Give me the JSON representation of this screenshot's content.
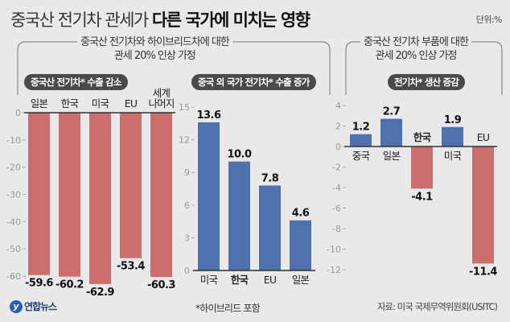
{
  "header": {
    "title_light": "중국산 전기차 관세가",
    "title_bold": "다른 국가에 미치는 영향",
    "unit": "단위:%"
  },
  "groups": [
    {
      "caption_line1": "중국산 전기차와 하이브리드차에 대한",
      "caption_line2": "관세 20% 인상 가정"
    },
    {
      "caption_line1": "중국산 전기차 부품에 대한",
      "caption_line2": "관세 20% 인상 가정"
    }
  ],
  "colors": {
    "positive": "#4f72ad",
    "negative": "#cc6e6e",
    "axis": "#333333",
    "pill": "#4a4a4a"
  },
  "chart_data": [
    {
      "type": "bar",
      "title": "중국산 전기차* 수출 감소",
      "categories": [
        "일본",
        "한국",
        "미국",
        "EU",
        "세계 나머지"
      ],
      "values": [
        -59.6,
        -60.2,
        -62.9,
        -53.4,
        -60.3
      ],
      "value_labels": [
        "-59.6",
        "-60.2",
        "-62.9",
        "-53.4",
        "-60.3"
      ],
      "bold_categories": [],
      "yticks": [
        0,
        -10,
        -20,
        -30,
        -40,
        -50,
        -60
      ],
      "ylim": [
        -60,
        0
      ],
      "xlabel": "",
      "ylabel": ""
    },
    {
      "type": "bar",
      "title": "중국 외 국가 전기차* 수출 증가",
      "categories": [
        "미국",
        "한국",
        "EU",
        "일본"
      ],
      "values": [
        13.6,
        10.0,
        7.8,
        4.6
      ],
      "value_labels": [
        "13.6",
        "10.0",
        "7.8",
        "4.6"
      ],
      "bold_categories": [
        "한국"
      ],
      "yticks": [
        0,
        3,
        6,
        9,
        12,
        15
      ],
      "ylim": [
        0,
        15
      ],
      "xlabel": "",
      "ylabel": ""
    },
    {
      "type": "bar",
      "title": "전기차* 생산 증감",
      "categories": [
        "중국",
        "일본",
        "한국",
        "미국",
        "EU"
      ],
      "values": [
        1.2,
        2.7,
        -4.1,
        1.9,
        -11.4
      ],
      "value_labels": [
        "1.2",
        "2.7",
        "-4.1",
        "1.9",
        "-11.4"
      ],
      "bold_categories": [
        "한국"
      ],
      "yticks": [
        4,
        2,
        0,
        -2,
        -4,
        -6,
        -8,
        -10,
        -12
      ],
      "ylim": [
        -12,
        4
      ],
      "xlabel": "",
      "ylabel": ""
    }
  ],
  "footnote": "*하이브리드 포함",
  "source": "자료: 미국 국제무역위원회(USITC)",
  "logo": {
    "mark": "y",
    "text": "연합뉴스"
  }
}
